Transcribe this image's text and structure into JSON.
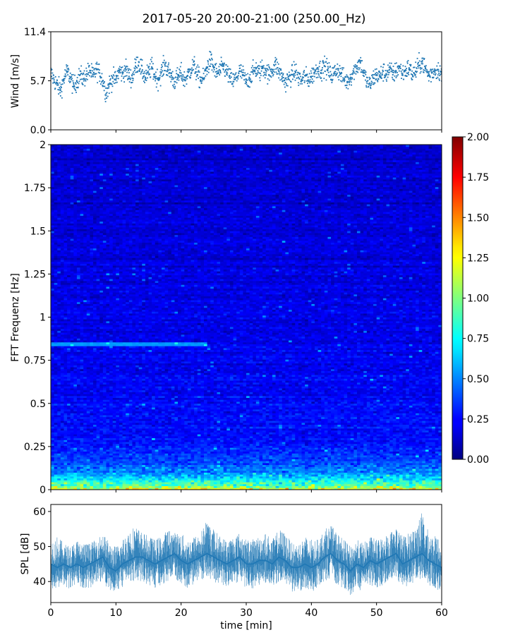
{
  "figure": {
    "title": "2017-05-20 20:00-21:00 (250.00_Hz)"
  },
  "chart_data": [
    {
      "id": "wind",
      "type": "scatter",
      "ylabel": "Wind [m/s]",
      "xlim": [
        0,
        60
      ],
      "ylim": [
        0,
        11.4
      ],
      "yticks": [
        0.0,
        5.7,
        11.4
      ],
      "ytick_labels": [
        "0.0",
        "5.7",
        "11.4"
      ],
      "xticks": [
        0,
        10,
        20,
        30,
        40,
        50,
        60
      ],
      "color": "#1f77b4",
      "series": [
        {
          "x": [
            0.0,
            0.5,
            1.0,
            1.5,
            2.0,
            2.5,
            3.0,
            3.5,
            4.0,
            4.5,
            5.0,
            5.5,
            6.0,
            6.5,
            7.0,
            7.5,
            8.0,
            8.5,
            9.0,
            9.5,
            10.0,
            10.5,
            11.0,
            11.5,
            12.0,
            12.5,
            13.0,
            13.5,
            14.0,
            14.5,
            15.0,
            15.5,
            16.0,
            16.5,
            17.0,
            17.5,
            18.0,
            18.5,
            19.0,
            19.5,
            20.0,
            20.5,
            21.0,
            21.5,
            22.0,
            22.5,
            23.0,
            23.5,
            24.0,
            24.5,
            25.0,
            25.5,
            26.0,
            26.5,
            27.0,
            27.5,
            28.0,
            28.5,
            29.0,
            29.5,
            30.0,
            30.5,
            31.0,
            31.5,
            32.0,
            32.5,
            33.0,
            33.5,
            34.0,
            34.5,
            35.0,
            35.5,
            36.0,
            36.5,
            37.0,
            37.5,
            38.0,
            38.5,
            39.0,
            39.5,
            40.0,
            40.5,
            41.0,
            41.5,
            42.0,
            42.5,
            43.0,
            43.5,
            44.0,
            44.5,
            45.0,
            45.5,
            46.0,
            46.5,
            47.0,
            47.5,
            48.0,
            48.5,
            49.0,
            49.5,
            50.0,
            50.5,
            51.0,
            51.5,
            52.0,
            52.5,
            53.0,
            53.5,
            54.0,
            54.5,
            55.0,
            55.5,
            56.0,
            56.5,
            57.0,
            57.5,
            58.0,
            58.5,
            59.0,
            59.5,
            60.0
          ],
          "y": [
            6.6,
            5.8,
            5.2,
            4.6,
            5.9,
            6.8,
            6.1,
            5.0,
            5.6,
            6.4,
            5.9,
            6.5,
            6.9,
            6.2,
            7.0,
            6.6,
            5.7,
            4.2,
            5.3,
            6.0,
            5.8,
            6.9,
            6.5,
            7.1,
            6.2,
            6.0,
            7.4,
            7.9,
            6.8,
            6.1,
            6.6,
            7.3,
            6.2,
            5.9,
            6.7,
            7.6,
            6.9,
            6.3,
            5.6,
            6.1,
            6.6,
            5.8,
            6.3,
            7.0,
            7.5,
            6.4,
            5.8,
            6.0,
            7.3,
            8.1,
            7.2,
            6.5,
            6.9,
            7.4,
            6.7,
            6.0,
            5.6,
            6.1,
            6.8,
            6.4,
            5.5,
            6.0,
            6.7,
            7.1,
            6.6,
            7.3,
            6.9,
            6.4,
            7.0,
            7.6,
            6.8,
            6.2,
            5.5,
            5.9,
            6.4,
            6.8,
            6.1,
            5.7,
            6.3,
            5.8,
            6.2,
            6.7,
            7.2,
            6.9,
            7.4,
            7.0,
            6.3,
            6.6,
            7.1,
            6.5,
            5.9,
            5.6,
            6.1,
            6.8,
            7.4,
            7.9,
            6.7,
            5.6,
            5.2,
            6.0,
            6.4,
            6.2,
            6.8,
            6.5,
            7.0,
            6.4,
            6.8,
            7.3,
            6.5,
            6.9,
            7.2,
            6.4,
            6.8,
            7.5,
            7.9,
            7.1,
            6.3,
            6.6,
            6.9,
            7.0,
            6.5
          ]
        }
      ]
    },
    {
      "id": "spectrogram",
      "type": "heatmap",
      "ylabel": "FFT Frequenz [Hz]",
      "xlim": [
        0,
        60
      ],
      "ylim": [
        0,
        2
      ],
      "yticks": [
        0,
        0.25,
        0.5,
        0.75,
        1,
        1.25,
        1.5,
        1.75,
        2
      ],
      "ytick_labels": [
        "0",
        "0.25",
        "0.5",
        "0.75",
        "1",
        "1.25",
        "1.5",
        "1.75",
        "2"
      ],
      "xticks": [
        0,
        10,
        20,
        30,
        40,
        50,
        60
      ],
      "colormap": "jet",
      "color_range": [
        0.0,
        2.0
      ],
      "colorbar_ticks": [
        "0.00",
        "0.25",
        "0.50",
        "0.75",
        "1.00",
        "1.25",
        "1.50",
        "1.75",
        "2.00"
      ],
      "frequency_profile": {
        "f": [
          0.0,
          0.02,
          0.05,
          0.08,
          0.1,
          0.15,
          0.2,
          0.25,
          0.3,
          0.4,
          0.5,
          0.6,
          0.75,
          0.85,
          1.0,
          1.25,
          1.5,
          1.75,
          2.0
        ],
        "mean_level": [
          1.2,
          1.0,
          0.75,
          0.6,
          0.5,
          0.42,
          0.36,
          0.32,
          0.28,
          0.26,
          0.25,
          0.24,
          0.23,
          0.22,
          0.21,
          0.2,
          0.18,
          0.17,
          0.16
        ]
      },
      "bright_line": {
        "f": 0.84,
        "x_range": [
          0,
          24
        ],
        "level": 0.55
      }
    },
    {
      "id": "spl",
      "type": "area",
      "ylabel": "SPL [dB]",
      "xlabel": "time [min]",
      "xlim": [
        0,
        60
      ],
      "ylim": [
        34,
        62
      ],
      "yticks": [
        40,
        50,
        60
      ],
      "ytick_labels": [
        "40",
        "50",
        "60"
      ],
      "xticks": [
        0,
        10,
        20,
        30,
        40,
        50,
        60
      ],
      "xtick_labels": [
        "0",
        "10",
        "20",
        "30",
        "40",
        "50",
        "60"
      ],
      "color": "#1f77b4",
      "series": [
        {
          "x": [
            0,
            1,
            2,
            3,
            4,
            5,
            6,
            7,
            8,
            9,
            10,
            11,
            12,
            13,
            14,
            15,
            16,
            17,
            18,
            19,
            20,
            21,
            22,
            23,
            24,
            25,
            26,
            27,
            28,
            29,
            30,
            31,
            32,
            33,
            34,
            35,
            36,
            37,
            38,
            39,
            40,
            41,
            42,
            43,
            44,
            45,
            46,
            47,
            48,
            49,
            50,
            51,
            52,
            53,
            54,
            55,
            56,
            57,
            58,
            59,
            60
          ],
          "mean": [
            45,
            44,
            45,
            44,
            45,
            44,
            45,
            46,
            47,
            44,
            43,
            45,
            46,
            47,
            47,
            46,
            45,
            46,
            47,
            48,
            46,
            45,
            46,
            47,
            48,
            47,
            46,
            45,
            46,
            47,
            45,
            45,
            46,
            46,
            45,
            47,
            46,
            44,
            44,
            45,
            44,
            45,
            47,
            48,
            46,
            45,
            43,
            45,
            44,
            46,
            45,
            46,
            47,
            48,
            45,
            46,
            47,
            48,
            46,
            45,
            44
          ],
          "low": [
            38,
            38,
            39,
            37,
            39,
            38,
            38,
            40,
            40,
            37,
            37,
            38,
            40,
            40,
            40,
            39,
            38,
            39,
            40,
            41,
            39,
            38,
            39,
            40,
            41,
            40,
            39,
            38,
            39,
            40,
            38,
            38,
            39,
            39,
            38,
            40,
            39,
            37,
            37,
            38,
            37,
            38,
            40,
            41,
            39,
            38,
            36,
            38,
            37,
            39,
            38,
            39,
            40,
            41,
            38,
            39,
            40,
            41,
            39,
            38,
            37
          ],
          "high": [
            52,
            53,
            51,
            50,
            52,
            51,
            51,
            52,
            54,
            51,
            50,
            52,
            55,
            56,
            54,
            53,
            52,
            53,
            55,
            54,
            54,
            52,
            53,
            54,
            58,
            55,
            53,
            52,
            53,
            54,
            52,
            52,
            53,
            54,
            52,
            55,
            54,
            51,
            51,
            53,
            52,
            52,
            55,
            56,
            54,
            52,
            50,
            52,
            51,
            53,
            52,
            53,
            54,
            56,
            53,
            54,
            56,
            60,
            54,
            53,
            52
          ]
        }
      ]
    }
  ]
}
